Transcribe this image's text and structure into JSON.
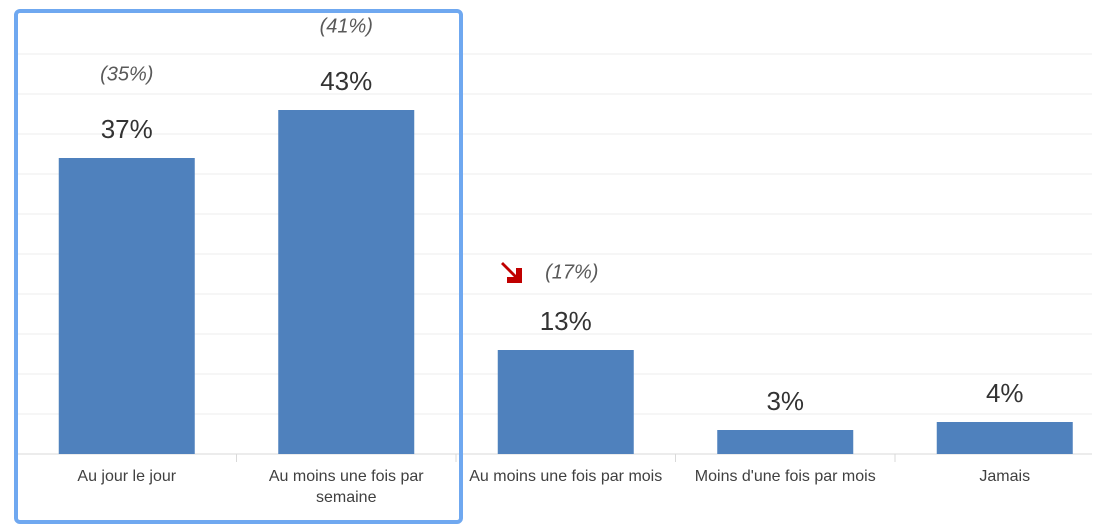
{
  "chart_data": {
    "type": "bar",
    "categories": [
      "Au jour le jour",
      "Au moins une fois par semaine",
      "Au moins une fois par mois",
      "Moins d'une fois par mois",
      "Jamais"
    ],
    "values": [
      37,
      43,
      13,
      3,
      4
    ],
    "value_labels": [
      "37%",
      "43%",
      "13%",
      "3%",
      "4%"
    ],
    "previous_values": [
      35,
      41,
      17,
      null,
      null
    ],
    "previous_value_labels": [
      "(35%)",
      "(41%)",
      "(17%)",
      null,
      null
    ],
    "color": "#4f81bd",
    "ylim": [
      0,
      50
    ],
    "yticks": [
      0,
      5,
      10,
      15,
      20,
      25,
      30,
      35,
      40,
      45,
      50
    ],
    "grid": true
  }
}
